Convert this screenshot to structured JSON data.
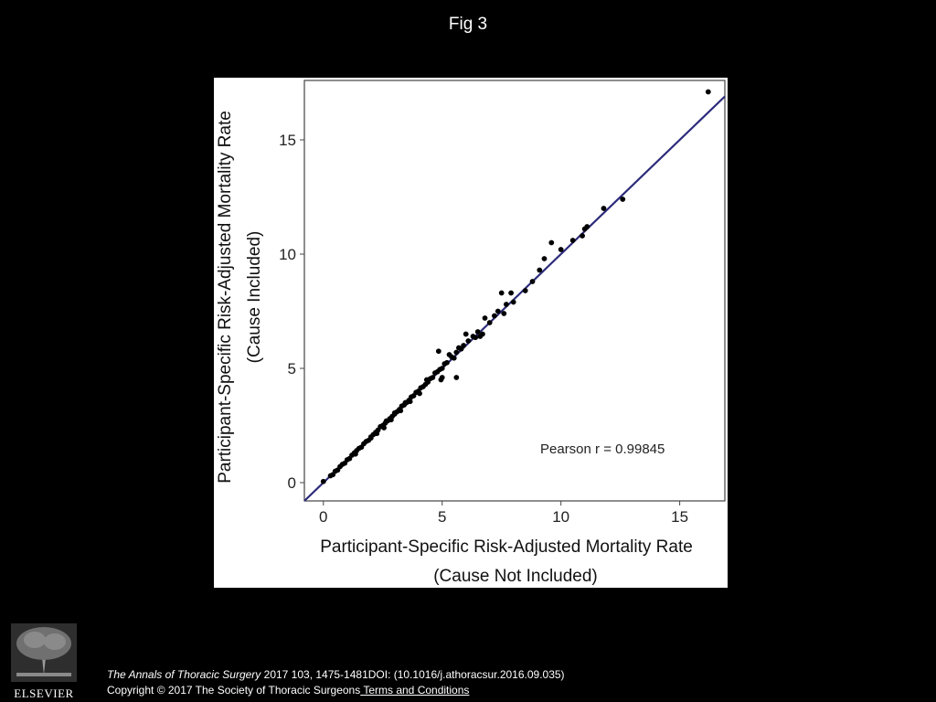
{
  "slide": {
    "title": "Fig 3"
  },
  "footer": {
    "journal": "The Annals of Thoracic Surgery",
    "citation_rest": " 2017 103, 1475-1481DOI: (10.1016/j.athoracsur.2016.09.035)",
    "copyright": "Copyright © 2017 The Society of Thoracic Surgeons",
    "terms_link": " Terms and Conditions",
    "publisher_logo": "ELSEVIER"
  },
  "chart_data": {
    "type": "scatter",
    "xlabel_line1": "Participant-Specific Risk-Adjusted Mortality Rate",
    "xlabel_line2": "(Cause Not Included)",
    "ylabel_line1": "Participant-Specific Risk-Adjusted Mortality Rate",
    "ylabel_line2": "(Cause Included)",
    "annotation": "Pearson r = 0.99845",
    "xlim": [
      -0.8,
      16.9
    ],
    "ylim": [
      -0.8,
      17.6
    ],
    "xticks": [
      0,
      5,
      10,
      15
    ],
    "yticks": [
      0,
      5,
      10,
      15
    ],
    "grid": false,
    "fit_line": {
      "x": [
        -0.8,
        16.9
      ],
      "y": [
        -0.8,
        16.9
      ],
      "color": "#2b2a7a"
    },
    "points": [
      [
        0.0,
        0.05
      ],
      [
        0.3,
        0.3
      ],
      [
        0.4,
        0.35
      ],
      [
        0.5,
        0.5
      ],
      [
        0.6,
        0.55
      ],
      [
        0.7,
        0.7
      ],
      [
        0.8,
        0.8
      ],
      [
        0.9,
        0.85
      ],
      [
        1.0,
        1.0
      ],
      [
        1.1,
        1.05
      ],
      [
        1.2,
        1.2
      ],
      [
        1.3,
        1.3
      ],
      [
        1.35,
        1.25
      ],
      [
        1.4,
        1.4
      ],
      [
        1.5,
        1.5
      ],
      [
        1.6,
        1.55
      ],
      [
        1.7,
        1.7
      ],
      [
        1.8,
        1.8
      ],
      [
        1.9,
        1.85
      ],
      [
        2.0,
        2.0
      ],
      [
        2.0,
        1.95
      ],
      [
        2.1,
        2.1
      ],
      [
        2.2,
        2.2
      ],
      [
        2.25,
        2.15
      ],
      [
        2.3,
        2.3
      ],
      [
        2.4,
        2.45
      ],
      [
        2.5,
        2.5
      ],
      [
        2.55,
        2.4
      ],
      [
        2.6,
        2.6
      ],
      [
        2.65,
        2.7
      ],
      [
        2.7,
        2.7
      ],
      [
        2.8,
        2.8
      ],
      [
        2.85,
        2.75
      ],
      [
        2.9,
        2.9
      ],
      [
        3.0,
        3.0
      ],
      [
        3.0,
        3.05
      ],
      [
        3.1,
        3.1
      ],
      [
        3.2,
        3.2
      ],
      [
        3.25,
        3.15
      ],
      [
        3.3,
        3.35
      ],
      [
        3.4,
        3.4
      ],
      [
        3.45,
        3.5
      ],
      [
        3.5,
        3.5
      ],
      [
        3.6,
        3.6
      ],
      [
        3.65,
        3.55
      ],
      [
        3.7,
        3.75
      ],
      [
        3.8,
        3.8
      ],
      [
        3.9,
        3.95
      ],
      [
        4.0,
        4.0
      ],
      [
        4.05,
        3.9
      ],
      [
        4.1,
        4.15
      ],
      [
        4.2,
        4.2
      ],
      [
        4.3,
        4.3
      ],
      [
        4.35,
        4.5
      ],
      [
        4.4,
        4.4
      ],
      [
        4.5,
        4.55
      ],
      [
        4.6,
        4.6
      ],
      [
        4.7,
        4.8
      ],
      [
        4.8,
        4.85
      ],
      [
        4.85,
        5.75
      ],
      [
        4.9,
        4.95
      ],
      [
        4.95,
        4.5
      ],
      [
        5.0,
        5.0
      ],
      [
        5.0,
        4.6
      ],
      [
        5.1,
        5.2
      ],
      [
        5.2,
        5.25
      ],
      [
        5.3,
        5.6
      ],
      [
        5.4,
        5.5
      ],
      [
        5.5,
        5.45
      ],
      [
        5.6,
        5.7
      ],
      [
        5.6,
        4.6
      ],
      [
        5.7,
        5.9
      ],
      [
        5.8,
        5.85
      ],
      [
        5.9,
        6.0
      ],
      [
        6.0,
        6.5
      ],
      [
        6.1,
        6.2
      ],
      [
        6.3,
        6.4
      ],
      [
        6.4,
        6.35
      ],
      [
        6.5,
        6.6
      ],
      [
        6.6,
        6.4
      ],
      [
        6.7,
        6.5
      ],
      [
        6.8,
        7.2
      ],
      [
        7.0,
        7.0
      ],
      [
        7.2,
        7.3
      ],
      [
        7.35,
        7.5
      ],
      [
        7.5,
        8.3
      ],
      [
        7.6,
        7.4
      ],
      [
        7.7,
        7.8
      ],
      [
        7.9,
        8.3
      ],
      [
        8.0,
        7.9
      ],
      [
        8.5,
        8.4
      ],
      [
        8.8,
        8.8
      ],
      [
        9.1,
        9.3
      ],
      [
        9.3,
        9.8
      ],
      [
        9.6,
        10.5
      ],
      [
        10.0,
        10.2
      ],
      [
        10.5,
        10.6
      ],
      [
        10.9,
        10.8
      ],
      [
        11.0,
        11.1
      ],
      [
        11.1,
        11.2
      ],
      [
        11.8,
        12.0
      ],
      [
        12.6,
        12.4
      ],
      [
        16.2,
        17.1
      ]
    ]
  }
}
